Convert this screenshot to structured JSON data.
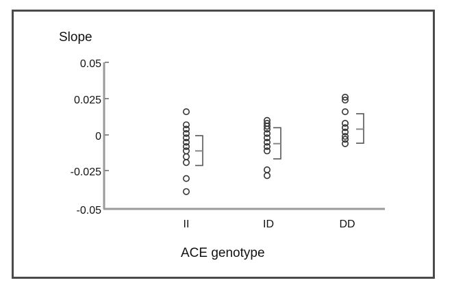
{
  "chart_data": {
    "type": "scatter",
    "subtype": "dot-plot with mean and SD brackets",
    "title": "",
    "ylabel": "Slope",
    "xlabel": "ACE genotype",
    "ylim": [
      -0.05,
      0.05
    ],
    "yticks": [
      "0.05",
      "0.025",
      "0",
      "-0.025",
      "-0.05"
    ],
    "ytick_values": [
      0.05,
      0.025,
      0,
      -0.025,
      -0.05
    ],
    "grid": false,
    "legend": null,
    "categories": [
      "II",
      "ID",
      "DD"
    ],
    "series": [
      {
        "name": "II",
        "values": [
          0.016,
          0.007,
          0.004,
          0.001,
          -0.002,
          -0.005,
          -0.008,
          -0.011,
          -0.015,
          -0.019,
          -0.03,
          -0.039
        ],
        "mean": -0.011,
        "sd_upper": -0.0005,
        "sd_lower": -0.021
      },
      {
        "name": "ID",
        "values": [
          0.01,
          0.008,
          0.006,
          0.004,
          0.001,
          -0.002,
          -0.005,
          -0.008,
          -0.011,
          -0.024,
          -0.028
        ],
        "mean": -0.006,
        "sd_upper": 0.005,
        "sd_lower": -0.0165
      },
      {
        "name": "DD",
        "values": [
          0.026,
          0.024,
          0.016,
          0.008,
          0.005,
          0.002,
          -0.001,
          -0.003,
          -0.006
        ],
        "mean": 0.004,
        "sd_upper": 0.0146,
        "sd_lower": -0.0057
      }
    ]
  },
  "axes": {
    "ylabel": "Slope",
    "xlabel": "ACE genotype",
    "yticks": [
      "0.05",
      "0.025",
      "0",
      "-0.025",
      "-0.05"
    ],
    "xticks": [
      "II",
      "ID",
      "DD"
    ]
  },
  "colors": {
    "marker": "#333333",
    "axis": "#9a9a9a",
    "bracket": "#555555",
    "frame": "#4a4a4a"
  }
}
